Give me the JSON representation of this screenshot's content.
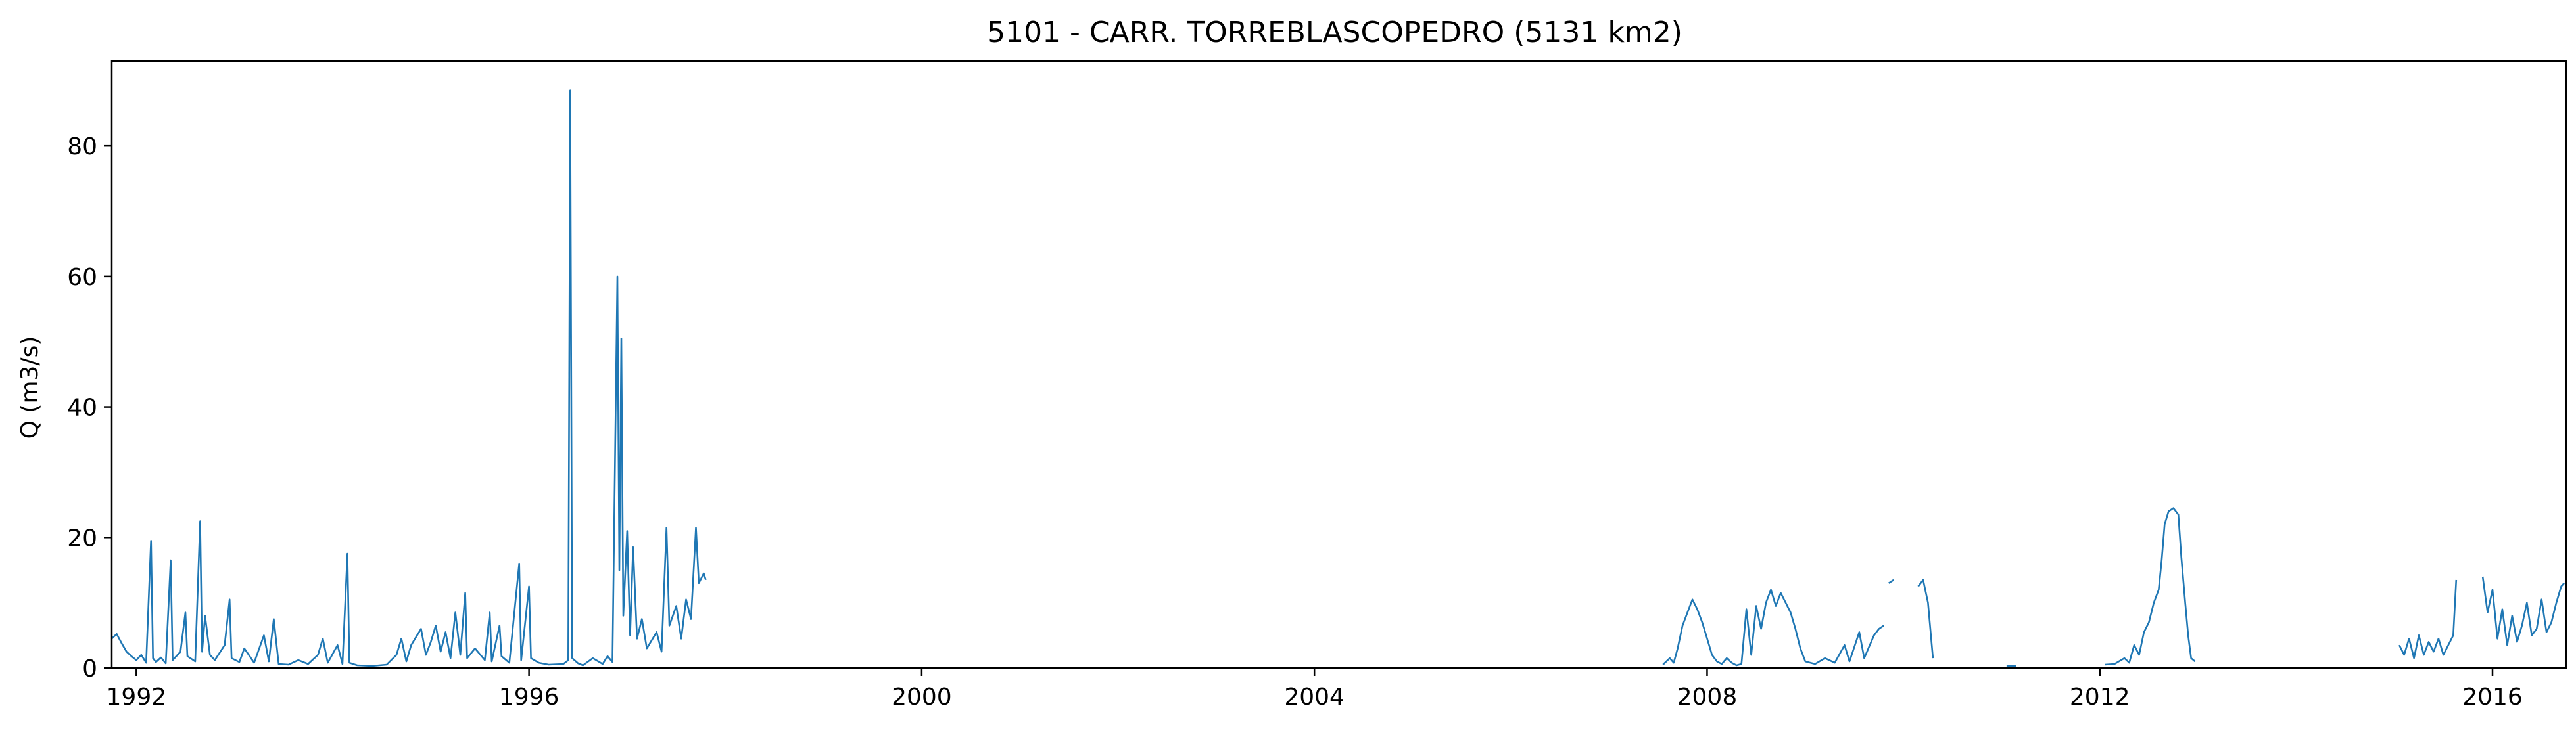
{
  "chart_data": {
    "type": "line",
    "title": "5101 - CARR. TORREBLASCOPEDRO (5131 km2)",
    "xlabel": "",
    "ylabel": "Q (m3/s)",
    "xlim": [
      1991.75,
      2016.75
    ],
    "ylim": [
      0,
      93
    ],
    "grid": false,
    "legend": "none",
    "x_ticks": [
      {
        "value": 1992,
        "label": "1992"
      },
      {
        "value": 1996,
        "label": "1996"
      },
      {
        "value": 2000,
        "label": "2000"
      },
      {
        "value": 2004,
        "label": "2004"
      },
      {
        "value": 2008,
        "label": "2008"
      },
      {
        "value": 2012,
        "label": "2012"
      },
      {
        "value": 2016,
        "label": "2016"
      }
    ],
    "y_ticks": [
      {
        "value": 0,
        "label": "0"
      },
      {
        "value": 20,
        "label": "20"
      },
      {
        "value": 40,
        "label": "40"
      },
      {
        "value": 60,
        "label": "60"
      },
      {
        "value": 80,
        "label": "80"
      }
    ],
    "series": [
      {
        "color": "#1f77b4",
        "segments": [
          [
            [
              1991.75,
              4.5
            ],
            [
              1991.8,
              5.2
            ],
            [
              1991.85,
              3.8
            ],
            [
              1991.9,
              2.5
            ],
            [
              1991.95,
              1.8
            ],
            [
              1992.0,
              1.2
            ],
            [
              1992.05,
              2.0
            ],
            [
              1992.1,
              0.8
            ],
            [
              1992.15,
              19.5
            ],
            [
              1992.17,
              1.5
            ],
            [
              1992.2,
              0.9
            ],
            [
              1992.25,
              1.6
            ],
            [
              1992.3,
              0.7
            ],
            [
              1992.35,
              16.5
            ],
            [
              1992.37,
              1.2
            ],
            [
              1992.45,
              2.5
            ],
            [
              1992.5,
              8.5
            ],
            [
              1992.52,
              1.8
            ],
            [
              1992.6,
              1.0
            ],
            [
              1992.65,
              22.5
            ],
            [
              1992.67,
              2.5
            ],
            [
              1992.7,
              8.0
            ],
            [
              1992.75,
              2.0
            ],
            [
              1992.8,
              1.2
            ],
            [
              1992.9,
              3.5
            ],
            [
              1992.95,
              10.5
            ],
            [
              1992.97,
              1.5
            ],
            [
              1993.05,
              0.9
            ],
            [
              1993.1,
              3.0
            ],
            [
              1993.2,
              0.8
            ],
            [
              1993.3,
              5.0
            ],
            [
              1993.35,
              1.0
            ],
            [
              1993.4,
              7.5
            ],
            [
              1993.45,
              0.6
            ],
            [
              1993.55,
              0.5
            ],
            [
              1993.65,
              1.2
            ],
            [
              1993.75,
              0.6
            ],
            [
              1993.85,
              2.0
            ],
            [
              1993.9,
              4.5
            ],
            [
              1993.95,
              0.8
            ],
            [
              1994.05,
              3.5
            ],
            [
              1994.1,
              0.6
            ],
            [
              1994.15,
              17.5
            ],
            [
              1994.17,
              0.8
            ],
            [
              1994.25,
              0.4
            ],
            [
              1994.4,
              0.3
            ],
            [
              1994.55,
              0.5
            ],
            [
              1994.65,
              2.0
            ],
            [
              1994.7,
              4.5
            ],
            [
              1994.75,
              1.0
            ],
            [
              1994.8,
              3.5
            ],
            [
              1994.9,
              6.0
            ],
            [
              1994.95,
              2.0
            ],
            [
              1995.0,
              4.0
            ],
            [
              1995.05,
              6.5
            ],
            [
              1995.1,
              2.5
            ],
            [
              1995.15,
              5.5
            ],
            [
              1995.2,
              1.5
            ],
            [
              1995.25,
              8.5
            ],
            [
              1995.3,
              2.0
            ],
            [
              1995.35,
              11.5
            ],
            [
              1995.37,
              1.5
            ],
            [
              1995.45,
              3.0
            ],
            [
              1995.55,
              1.2
            ],
            [
              1995.6,
              8.5
            ],
            [
              1995.62,
              1.0
            ],
            [
              1995.7,
              6.5
            ],
            [
              1995.72,
              1.8
            ],
            [
              1995.8,
              0.8
            ],
            [
              1995.9,
              16.0
            ],
            [
              1995.92,
              1.2
            ],
            [
              1996.0,
              12.5
            ],
            [
              1996.02,
              1.5
            ],
            [
              1996.1,
              0.8
            ],
            [
              1996.2,
              0.5
            ],
            [
              1996.35,
              0.6
            ],
            [
              1996.4,
              1.2
            ],
            [
              1996.42,
              88.5
            ],
            [
              1996.44,
              1.5
            ],
            [
              1996.5,
              0.7
            ],
            [
              1996.55,
              0.4
            ],
            [
              1996.65,
              1.5
            ],
            [
              1996.75,
              0.6
            ],
            [
              1996.8,
              1.8
            ],
            [
              1996.85,
              0.9
            ],
            [
              1996.9,
              60.0
            ],
            [
              1996.92,
              15.0
            ],
            [
              1996.94,
              50.5
            ],
            [
              1996.96,
              8.0
            ],
            [
              1997.0,
              21.0
            ],
            [
              1997.03,
              5.0
            ],
            [
              1997.06,
              18.5
            ],
            [
              1997.1,
              4.5
            ],
            [
              1997.15,
              7.5
            ],
            [
              1997.2,
              3.0
            ],
            [
              1997.3,
              5.5
            ],
            [
              1997.35,
              2.5
            ],
            [
              1997.4,
              21.5
            ],
            [
              1997.43,
              6.5
            ],
            [
              1997.5,
              9.5
            ],
            [
              1997.55,
              4.5
            ],
            [
              1997.6,
              10.5
            ],
            [
              1997.65,
              7.5
            ],
            [
              1997.7,
              21.5
            ],
            [
              1997.73,
              13.0
            ],
            [
              1997.78,
              14.5
            ],
            [
              1997.8,
              13.5
            ]
          ],
          [
            [
              2007.55,
              0.5
            ],
            [
              2007.62,
              1.5
            ],
            [
              2007.66,
              0.8
            ],
            [
              2007.7,
              3.0
            ],
            [
              2007.75,
              6.5
            ],
            [
              2007.8,
              8.5
            ],
            [
              2007.85,
              10.5
            ],
            [
              2007.9,
              9.0
            ],
            [
              2007.95,
              7.0
            ],
            [
              2008.0,
              4.5
            ],
            [
              2008.05,
              2.0
            ],
            [
              2008.1,
              1.0
            ],
            [
              2008.15,
              0.6
            ],
            [
              2008.2,
              1.5
            ],
            [
              2008.25,
              0.8
            ],
            [
              2008.3,
              0.4
            ],
            [
              2008.35,
              0.6
            ],
            [
              2008.4,
              9.0
            ],
            [
              2008.45,
              2.0
            ],
            [
              2008.5,
              9.5
            ],
            [
              2008.55,
              6.0
            ],
            [
              2008.6,
              10.0
            ],
            [
              2008.65,
              12.0
            ],
            [
              2008.7,
              9.5
            ],
            [
              2008.75,
              11.5
            ],
            [
              2008.8,
              10.0
            ],
            [
              2008.85,
              8.5
            ],
            [
              2008.9,
              6.0
            ],
            [
              2008.95,
              3.0
            ],
            [
              2009.0,
              1.0
            ],
            [
              2009.1,
              0.6
            ],
            [
              2009.2,
              1.5
            ],
            [
              2009.3,
              0.8
            ],
            [
              2009.4,
              3.5
            ],
            [
              2009.45,
              1.0
            ],
            [
              2009.55,
              5.5
            ],
            [
              2009.6,
              1.5
            ],
            [
              2009.7,
              5.0
            ],
            [
              2009.75,
              6.0
            ],
            [
              2009.8,
              6.5
            ]
          ],
          [
            [
              2009.85,
              13.0
            ],
            [
              2009.9,
              13.5
            ]
          ],
          [
            [
              2010.15,
              12.5
            ],
            [
              2010.2,
              13.5
            ],
            [
              2010.25,
              10.0
            ],
            [
              2010.3,
              1.5
            ]
          ],
          [
            [
              2011.05,
              0.3
            ],
            [
              2011.15,
              0.3
            ]
          ],
          [
            [
              2012.05,
              0.5
            ],
            [
              2012.15,
              0.6
            ],
            [
              2012.25,
              1.5
            ],
            [
              2012.3,
              0.8
            ],
            [
              2012.35,
              3.5
            ],
            [
              2012.4,
              2.0
            ],
            [
              2012.45,
              5.5
            ],
            [
              2012.5,
              7.0
            ],
            [
              2012.55,
              10.0
            ],
            [
              2012.6,
              12.0
            ],
            [
              2012.63,
              16.5
            ],
            [
              2012.66,
              22.0
            ],
            [
              2012.7,
              24.0
            ],
            [
              2012.75,
              24.5
            ],
            [
              2012.8,
              23.5
            ],
            [
              2012.83,
              17.0
            ],
            [
              2012.87,
              10.0
            ],
            [
              2012.9,
              5.0
            ],
            [
              2012.93,
              1.5
            ],
            [
              2012.97,
              1.0
            ]
          ],
          [
            [
              2015.05,
              3.5
            ],
            [
              2015.1,
              2.0
            ],
            [
              2015.15,
              4.5
            ],
            [
              2015.2,
              1.5
            ],
            [
              2015.25,
              5.0
            ],
            [
              2015.3,
              2.0
            ],
            [
              2015.35,
              4.0
            ],
            [
              2015.4,
              2.5
            ],
            [
              2015.45,
              4.5
            ],
            [
              2015.5,
              2.0
            ],
            [
              2015.55,
              3.5
            ],
            [
              2015.6,
              5.0
            ],
            [
              2015.63,
              13.5
            ]
          ],
          [
            [
              2015.9,
              14.0
            ],
            [
              2015.95,
              8.5
            ],
            [
              2016.0,
              12.0
            ],
            [
              2016.05,
              4.5
            ],
            [
              2016.1,
              9.0
            ],
            [
              2016.15,
              3.5
            ],
            [
              2016.2,
              8.0
            ],
            [
              2016.25,
              4.0
            ],
            [
              2016.3,
              6.5
            ],
            [
              2016.35,
              10.0
            ],
            [
              2016.4,
              5.0
            ],
            [
              2016.45,
              6.0
            ],
            [
              2016.5,
              10.5
            ],
            [
              2016.55,
              5.5
            ],
            [
              2016.6,
              7.0
            ],
            [
              2016.65,
              10.0
            ],
            [
              2016.7,
              12.5
            ],
            [
              2016.73,
              13.0
            ]
          ]
        ]
      }
    ]
  }
}
